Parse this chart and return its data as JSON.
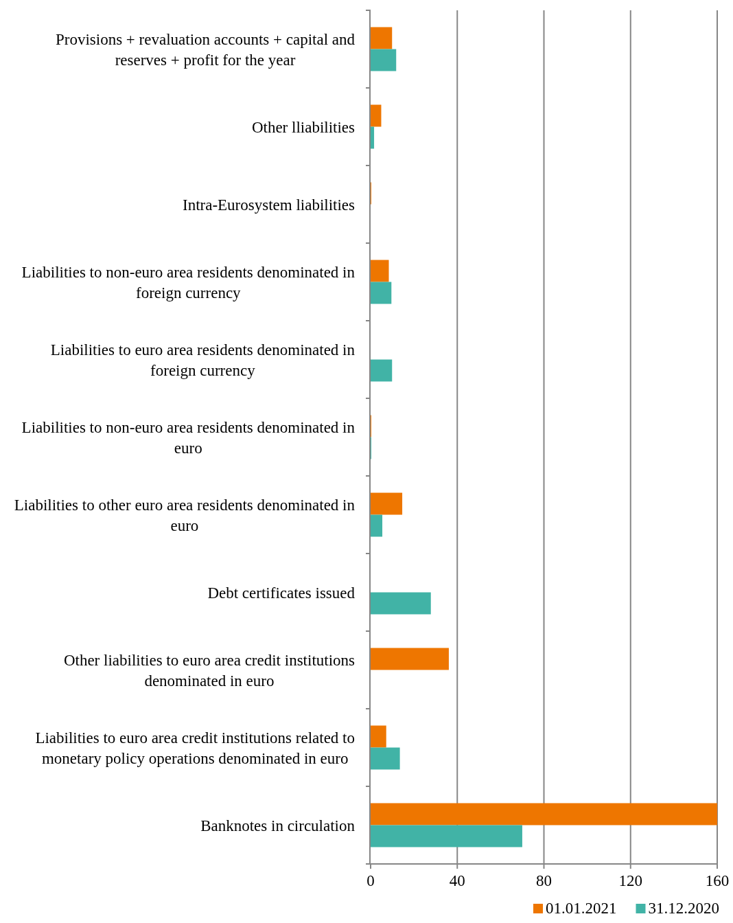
{
  "chart_data": {
    "type": "bar",
    "orientation": "horizontal",
    "categories": [
      "Provisions + revaluation accounts + capital and reserves + profit for the year",
      "Other lliabilities",
      "Intra-Eurosystem liabilities",
      "Liabilities to non-euro area residents denominated in foreign currency",
      "Liabilities to euro area residents denominated in foreign currency",
      "Liabilities to non-euro area residents denominated in euro",
      "Liabilities to other euro area residents denominated in euro",
      "Debt certificates issued",
      "Other liabilities to euro area credit institutions denominated in euro",
      "Liabilities to euro area credit institutions related to monetary policy operations denominated in euro",
      "Banknotes in circulation"
    ],
    "series": [
      {
        "name": "01.01.2021",
        "color": "#ee7600",
        "values": [
          9.9,
          4.9,
          0.3,
          8.4,
          0,
          0.3,
          14.6,
          0,
          36.1,
          7.2,
          160
        ]
      },
      {
        "name": "31.12.2020",
        "color": "#41b3a6",
        "values": [
          11.8,
          1.6,
          0,
          9.6,
          9.9,
          0.3,
          5.4,
          27.8,
          0,
          13.5,
          70
        ]
      }
    ],
    "xlim": [
      0,
      160
    ],
    "xticks": [
      0,
      40,
      80,
      120,
      160
    ],
    "grid": "x",
    "legend": "bottom"
  }
}
